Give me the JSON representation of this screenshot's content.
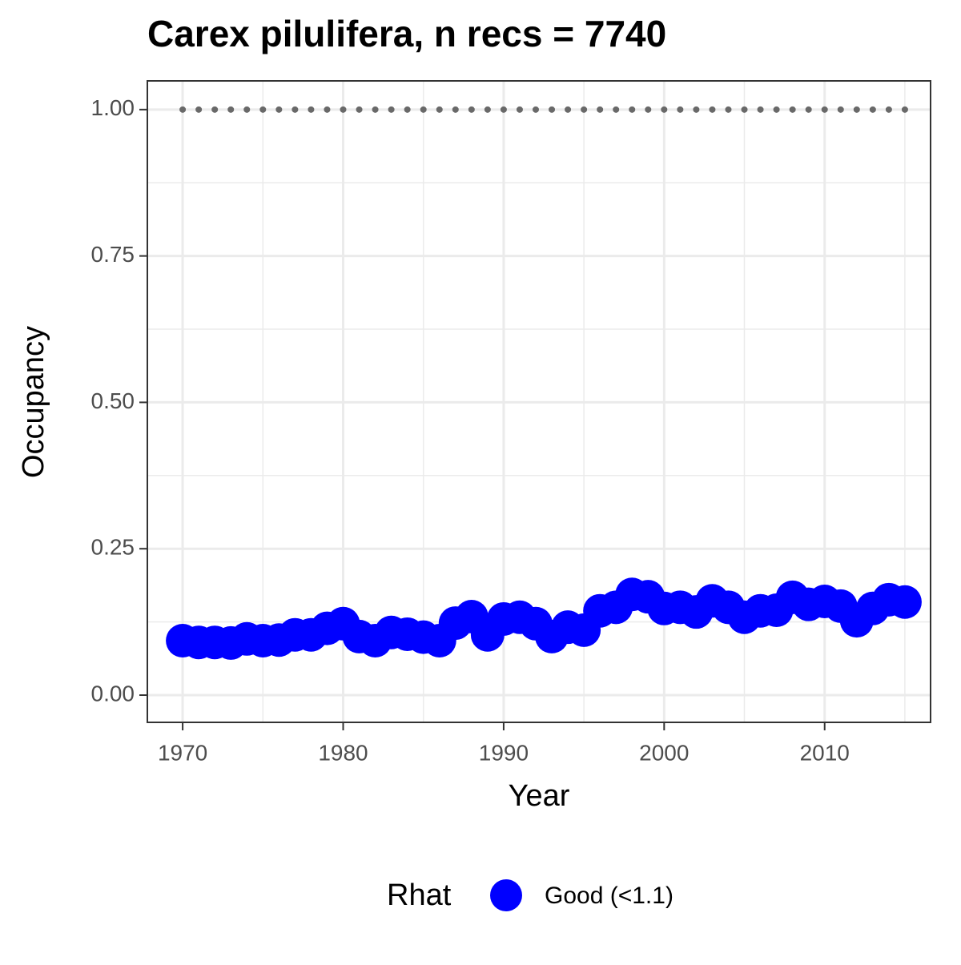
{
  "chart_data": {
    "type": "scatter",
    "title": "Carex pilulifera, n recs = 7740",
    "x_label": "Year",
    "y_label": "Occupancy",
    "legend_title": "Rhat",
    "x": [
      1970,
      1971,
      1972,
      1973,
      1974,
      1975,
      1976,
      1977,
      1978,
      1979,
      1980,
      1981,
      1982,
      1983,
      1984,
      1985,
      1986,
      1987,
      1988,
      1989,
      1990,
      1991,
      1992,
      1993,
      1994,
      1995,
      1996,
      1997,
      1998,
      1999,
      2000,
      2001,
      2002,
      2003,
      2004,
      2005,
      2006,
      2007,
      2008,
      2009,
      2010,
      2011,
      2012,
      2013,
      2014,
      2015
    ],
    "series": [
      {
        "name": "Good (<1.1)",
        "color": "#0000ff",
        "values": [
          0.093,
          0.09,
          0.09,
          0.089,
          0.096,
          0.093,
          0.094,
          0.103,
          0.103,
          0.114,
          0.122,
          0.1,
          0.093,
          0.107,
          0.104,
          0.099,
          0.093,
          0.123,
          0.134,
          0.103,
          0.13,
          0.133,
          0.122,
          0.1,
          0.116,
          0.111,
          0.144,
          0.15,
          0.172,
          0.168,
          0.148,
          0.15,
          0.142,
          0.161,
          0.15,
          0.133,
          0.144,
          0.145,
          0.167,
          0.155,
          0.16,
          0.152,
          0.127,
          0.148,
          0.163,
          0.159
        ]
      }
    ],
    "hline": 1,
    "hline_color": "#696969",
    "xlim": [
      1967.8,
      2016.6
    ],
    "ylim": [
      -0.0465,
      1.049
    ],
    "xticks": [
      1970,
      1980,
      1990,
      2000,
      2010
    ],
    "yticks": [
      {
        "value": 0,
        "label": "0.00"
      },
      {
        "value": 0.25,
        "label": "0.25"
      },
      {
        "value": 0.5,
        "label": "0.50"
      },
      {
        "value": 0.75,
        "label": "0.75"
      },
      {
        "value": 1,
        "label": "1.00"
      }
    ],
    "minor_xticks": [
      1975,
      1985,
      1995,
      2005,
      2015
    ],
    "minor_yticks": [
      0.125,
      0.375,
      0.625,
      0.875
    ],
    "grid": true
  }
}
